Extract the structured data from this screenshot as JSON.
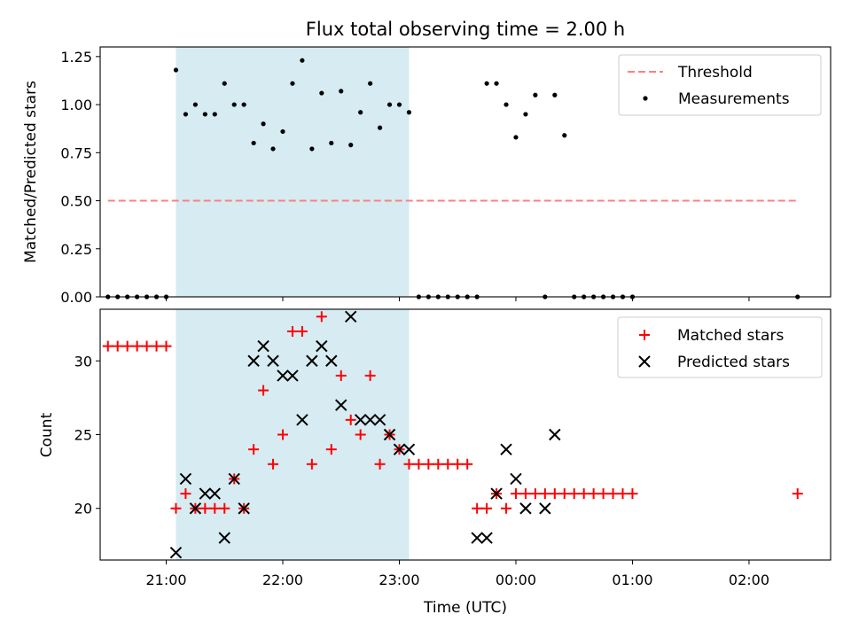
{
  "chart_data": [
    {
      "type": "scatter",
      "title": "Flux total observing time = 2.00 h",
      "xlabel": "",
      "ylabel": "Matched/Predicted stars",
      "xlim": [
        "20:26",
        "02:42"
      ],
      "ylim": [
        0,
        1.3
      ],
      "yticks": [
        0.0,
        0.25,
        0.5,
        0.75,
        1.0,
        1.25
      ],
      "ytick_labels": [
        "0.00",
        "0.25",
        "0.50",
        "0.75",
        "1.00",
        "1.25"
      ],
      "shaded_region": {
        "x": [
          "21:05",
          "23:05"
        ],
        "color": "#add8e6"
      },
      "legend": {
        "placement": "top-right",
        "entries": [
          "Threshold",
          "Measurements"
        ]
      },
      "series": [
        {
          "name": "Threshold",
          "style": "dashed-line",
          "color": "#ff7f7f",
          "x": [
            "20:30",
            "02:25"
          ],
          "y": [
            0.5,
            0.5
          ]
        },
        {
          "name": "Measurements",
          "style": "dot",
          "color": "#000000",
          "x": [
            "20:30",
            "20:35",
            "20:40",
            "20:45",
            "20:50",
            "20:55",
            "21:00",
            "21:05",
            "21:10",
            "21:15",
            "21:20",
            "21:25",
            "21:30",
            "21:35",
            "21:40",
            "21:45",
            "21:50",
            "21:55",
            "22:00",
            "22:05",
            "22:10",
            "22:15",
            "22:20",
            "22:25",
            "22:30",
            "22:35",
            "22:40",
            "22:45",
            "22:50",
            "22:55",
            "23:00",
            "23:05",
            "23:10",
            "23:15",
            "23:20",
            "23:25",
            "23:30",
            "23:35",
            "23:40",
            "23:45",
            "23:50",
            "23:55",
            "00:00",
            "00:05",
            "00:10",
            "00:15",
            "00:20",
            "00:25",
            "00:30",
            "00:35",
            "00:40",
            "00:45",
            "00:50",
            "00:55",
            "01:00",
            "02:25"
          ],
          "y": [
            0,
            0,
            0,
            0,
            0,
            0,
            0,
            1.18,
            0.95,
            1.0,
            0.95,
            0.95,
            1.11,
            1.0,
            1.0,
            0.8,
            0.9,
            0.77,
            0.86,
            1.11,
            1.23,
            0.77,
            1.06,
            0.8,
            1.07,
            0.79,
            0.96,
            1.11,
            0.88,
            1.0,
            1.0,
            0.96,
            0,
            0,
            0,
            0,
            0,
            0,
            0,
            1.11,
            1.11,
            1.0,
            0.83,
            0.95,
            1.05,
            0,
            1.05,
            0.84,
            0,
            0,
            0,
            0,
            0,
            0,
            0,
            0
          ]
        }
      ]
    },
    {
      "type": "scatter",
      "title": "",
      "xlabel": "Time (UTC)",
      "ylabel": "Count",
      "xlim": [
        "20:26",
        "02:42"
      ],
      "ylim": [
        16.5,
        33.5
      ],
      "yticks": [
        20,
        25,
        30
      ],
      "xticks": [
        "21:00",
        "22:00",
        "23:00",
        "00:00",
        "01:00",
        "02:00"
      ],
      "shaded_region": {
        "x": [
          "21:05",
          "23:05"
        ],
        "color": "#add8e6"
      },
      "legend": {
        "placement": "top-right",
        "entries": [
          "Matched stars",
          "Predicted stars"
        ]
      },
      "series": [
        {
          "name": "Matched stars",
          "marker": "+",
          "color": "#ff0000",
          "x": [
            "20:30",
            "20:35",
            "20:40",
            "20:45",
            "20:50",
            "20:55",
            "21:00",
            "21:05",
            "21:10",
            "21:15",
            "21:20",
            "21:25",
            "21:30",
            "21:35",
            "21:40",
            "21:45",
            "21:50",
            "21:55",
            "22:00",
            "22:05",
            "22:10",
            "22:15",
            "22:20",
            "22:25",
            "22:30",
            "22:35",
            "22:40",
            "22:45",
            "22:50",
            "22:55",
            "23:00",
            "23:05",
            "23:10",
            "23:15",
            "23:20",
            "23:25",
            "23:30",
            "23:35",
            "23:40",
            "23:45",
            "23:50",
            "23:55",
            "00:00",
            "00:05",
            "00:10",
            "00:15",
            "00:20",
            "00:25",
            "00:30",
            "00:35",
            "00:40",
            "00:45",
            "00:50",
            "00:55",
            "01:00",
            "02:25"
          ],
          "y": [
            31,
            31,
            31,
            31,
            31,
            31,
            31,
            20,
            21,
            20,
            20,
            20,
            20,
            22,
            20,
            24,
            28,
            23,
            25,
            32,
            32,
            23,
            33,
            24,
            29,
            26,
            25,
            29,
            23,
            25,
            24,
            23,
            23,
            23,
            23,
            23,
            23,
            23,
            20,
            20,
            21,
            20,
            21,
            21,
            21,
            21,
            21,
            21,
            21,
            21,
            21,
            21,
            21,
            21,
            21,
            21
          ]
        },
        {
          "name": "Predicted stars",
          "marker": "x",
          "color": "#000000",
          "x": [
            "21:05",
            "21:10",
            "21:15",
            "21:20",
            "21:25",
            "21:30",
            "21:35",
            "21:40",
            "21:45",
            "21:50",
            "21:55",
            "22:00",
            "22:05",
            "22:10",
            "22:15",
            "22:20",
            "22:25",
            "22:30",
            "22:35",
            "22:40",
            "22:45",
            "22:50",
            "22:55",
            "23:00",
            "23:05",
            "23:40",
            "23:45",
            "23:50",
            "23:55",
            "00:00",
            "00:05",
            "00:15",
            "00:20"
          ],
          "y": [
            17,
            22,
            20,
            21,
            21,
            18,
            22,
            20,
            30,
            31,
            30,
            29,
            29,
            26,
            30,
            31,
            30,
            27,
            33,
            26,
            26,
            26,
            25,
            24,
            24,
            18,
            18,
            21,
            24,
            22,
            20,
            20,
            25
          ]
        }
      ]
    }
  ]
}
